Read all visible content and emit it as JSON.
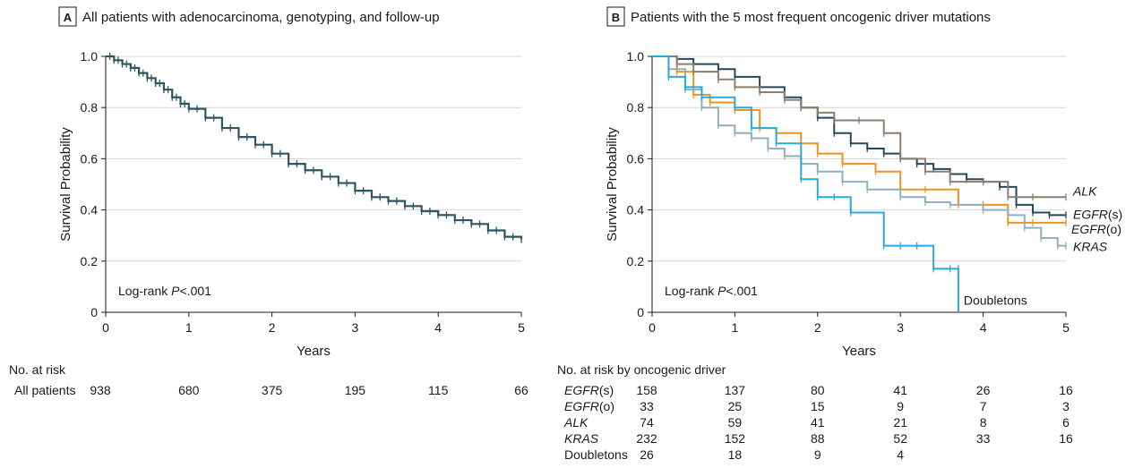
{
  "chart_data": [
    {
      "type": "line",
      "panel_label": "A",
      "title": "All patients with adenocarcinoma, genotyping, and follow-up",
      "xlabel": "Years",
      "ylabel": "Survival Probability",
      "xlim": [
        0,
        5
      ],
      "ylim": [
        0,
        1.0
      ],
      "xticks": [
        "0",
        "1",
        "2",
        "3",
        "4",
        "5"
      ],
      "yticks": [
        "0",
        "0.2",
        "0.4",
        "0.6",
        "0.8",
        "1.0"
      ],
      "grid": "horizontal",
      "annotation_prefix": "Log-rank ",
      "annotation_p": "P",
      "annotation_suffix": "<.001",
      "series": [
        {
          "color": "#2f5560",
          "x": [
            0,
            0.1,
            0.2,
            0.3,
            0.4,
            0.5,
            0.6,
            0.7,
            0.8,
            0.9,
            1.0,
            1.2,
            1.4,
            1.6,
            1.8,
            2.0,
            2.2,
            2.4,
            2.6,
            2.8,
            3.0,
            3.2,
            3.4,
            3.6,
            3.8,
            4.0,
            4.2,
            4.4,
            4.6,
            4.8,
            5.0
          ],
          "y": [
            1.0,
            0.985,
            0.97,
            0.955,
            0.935,
            0.915,
            0.895,
            0.87,
            0.84,
            0.815,
            0.795,
            0.76,
            0.72,
            0.685,
            0.655,
            0.62,
            0.58,
            0.555,
            0.53,
            0.505,
            0.475,
            0.45,
            0.435,
            0.415,
            0.395,
            0.38,
            0.36,
            0.345,
            0.32,
            0.295,
            0.285
          ]
        }
      ],
      "risk_table": {
        "header": "No. at risk",
        "rows": [
          {
            "label": "All patients",
            "values": [
              "938",
              "680",
              "375",
              "195",
              "115",
              "66"
            ]
          }
        ]
      }
    },
    {
      "type": "line",
      "panel_label": "B",
      "title": "Patients with the 5 most frequent oncogenic driver mutations",
      "xlabel": "Years",
      "ylabel": "Survival Probability",
      "xlim": [
        0,
        5
      ],
      "ylim": [
        0,
        1.0
      ],
      "xticks": [
        "0",
        "1",
        "2",
        "3",
        "4",
        "5"
      ],
      "yticks": [
        "0",
        "0.2",
        "0.4",
        "0.6",
        "0.8",
        "1.0"
      ],
      "grid": "horizontal",
      "annotation_prefix": "Log-rank ",
      "annotation_p": "P",
      "annotation_suffix": "<.001",
      "series": [
        {
          "name": "EGFR(s)",
          "color": "#24495a",
          "x": [
            0,
            0.3,
            0.5,
            0.8,
            1.0,
            1.3,
            1.6,
            1.8,
            2.0,
            2.2,
            2.4,
            2.6,
            2.8,
            3.0,
            3.2,
            3.4,
            3.6,
            3.8,
            4.0,
            4.2,
            4.4,
            4.6,
            4.8,
            5.0
          ],
          "y": [
            1.0,
            0.99,
            0.97,
            0.95,
            0.92,
            0.88,
            0.84,
            0.8,
            0.76,
            0.7,
            0.66,
            0.64,
            0.62,
            0.6,
            0.58,
            0.56,
            0.54,
            0.52,
            0.51,
            0.49,
            0.42,
            0.39,
            0.38,
            0.38
          ]
        },
        {
          "name": "EGFR(o)",
          "color": "#f0921e",
          "x": [
            0,
            0.3,
            0.5,
            0.7,
            1.0,
            1.3,
            1.5,
            1.8,
            2.0,
            2.3,
            2.7,
            3.0,
            3.3,
            3.7,
            4.0,
            4.3,
            4.6,
            5.0
          ],
          "y": [
            1.0,
            0.94,
            0.85,
            0.82,
            0.79,
            0.72,
            0.7,
            0.66,
            0.62,
            0.58,
            0.55,
            0.48,
            0.48,
            0.42,
            0.42,
            0.35,
            0.35,
            0.35
          ]
        },
        {
          "name": "ALK",
          "color": "#8c7e70",
          "x": [
            0,
            0.3,
            0.5,
            0.8,
            1.0,
            1.3,
            1.6,
            1.8,
            2.0,
            2.2,
            2.5,
            2.8,
            3.0,
            3.3,
            3.6,
            4.0,
            4.3,
            4.6,
            5.0
          ],
          "y": [
            1.0,
            0.97,
            0.94,
            0.91,
            0.88,
            0.86,
            0.83,
            0.8,
            0.78,
            0.75,
            0.75,
            0.7,
            0.6,
            0.55,
            0.51,
            0.51,
            0.45,
            0.45,
            0.45
          ]
        },
        {
          "name": "KRAS",
          "color": "#8fb0be",
          "x": [
            0,
            0.2,
            0.4,
            0.6,
            0.8,
            1.0,
            1.2,
            1.4,
            1.6,
            1.8,
            2.0,
            2.3,
            2.6,
            3.0,
            3.3,
            3.6,
            4.0,
            4.3,
            4.5,
            4.7,
            4.9,
            5.0
          ],
          "y": [
            1.0,
            0.95,
            0.87,
            0.8,
            0.73,
            0.7,
            0.68,
            0.64,
            0.61,
            0.58,
            0.55,
            0.51,
            0.48,
            0.45,
            0.43,
            0.42,
            0.4,
            0.38,
            0.33,
            0.29,
            0.26,
            0.26
          ]
        },
        {
          "name": "Doubletons",
          "color": "#27a9e1",
          "x": [
            0,
            0.2,
            0.4,
            0.6,
            1.0,
            1.2,
            1.5,
            1.8,
            2.0,
            2.2,
            2.4,
            2.8,
            3.0,
            3.2,
            3.4,
            3.6,
            3.7,
            3.7
          ],
          "y": [
            1.0,
            0.92,
            0.88,
            0.84,
            0.8,
            0.72,
            0.66,
            0.52,
            0.45,
            0.45,
            0.39,
            0.26,
            0.26,
            0.26,
            0.17,
            0.17,
            0.17,
            0.0
          ]
        }
      ],
      "risk_table": {
        "header": "No. at risk by oncogenic driver",
        "rows": [
          {
            "label": "EGFR(s)",
            "values": [
              "158",
              "137",
              "80",
              "41",
              "26",
              "16"
            ]
          },
          {
            "label": "EGFR(o)",
            "values": [
              "33",
              "25",
              "15",
              "9",
              "7",
              "3"
            ]
          },
          {
            "label": "ALK",
            "values": [
              "74",
              "59",
              "41",
              "21",
              "8",
              "6"
            ]
          },
          {
            "label": "KRAS",
            "values": [
              "232",
              "152",
              "88",
              "52",
              "33",
              "16"
            ]
          },
          {
            "label": "Doubletons",
            "values": [
              "26",
              "18",
              "9",
              "4",
              "",
              ""
            ]
          }
        ]
      }
    }
  ]
}
